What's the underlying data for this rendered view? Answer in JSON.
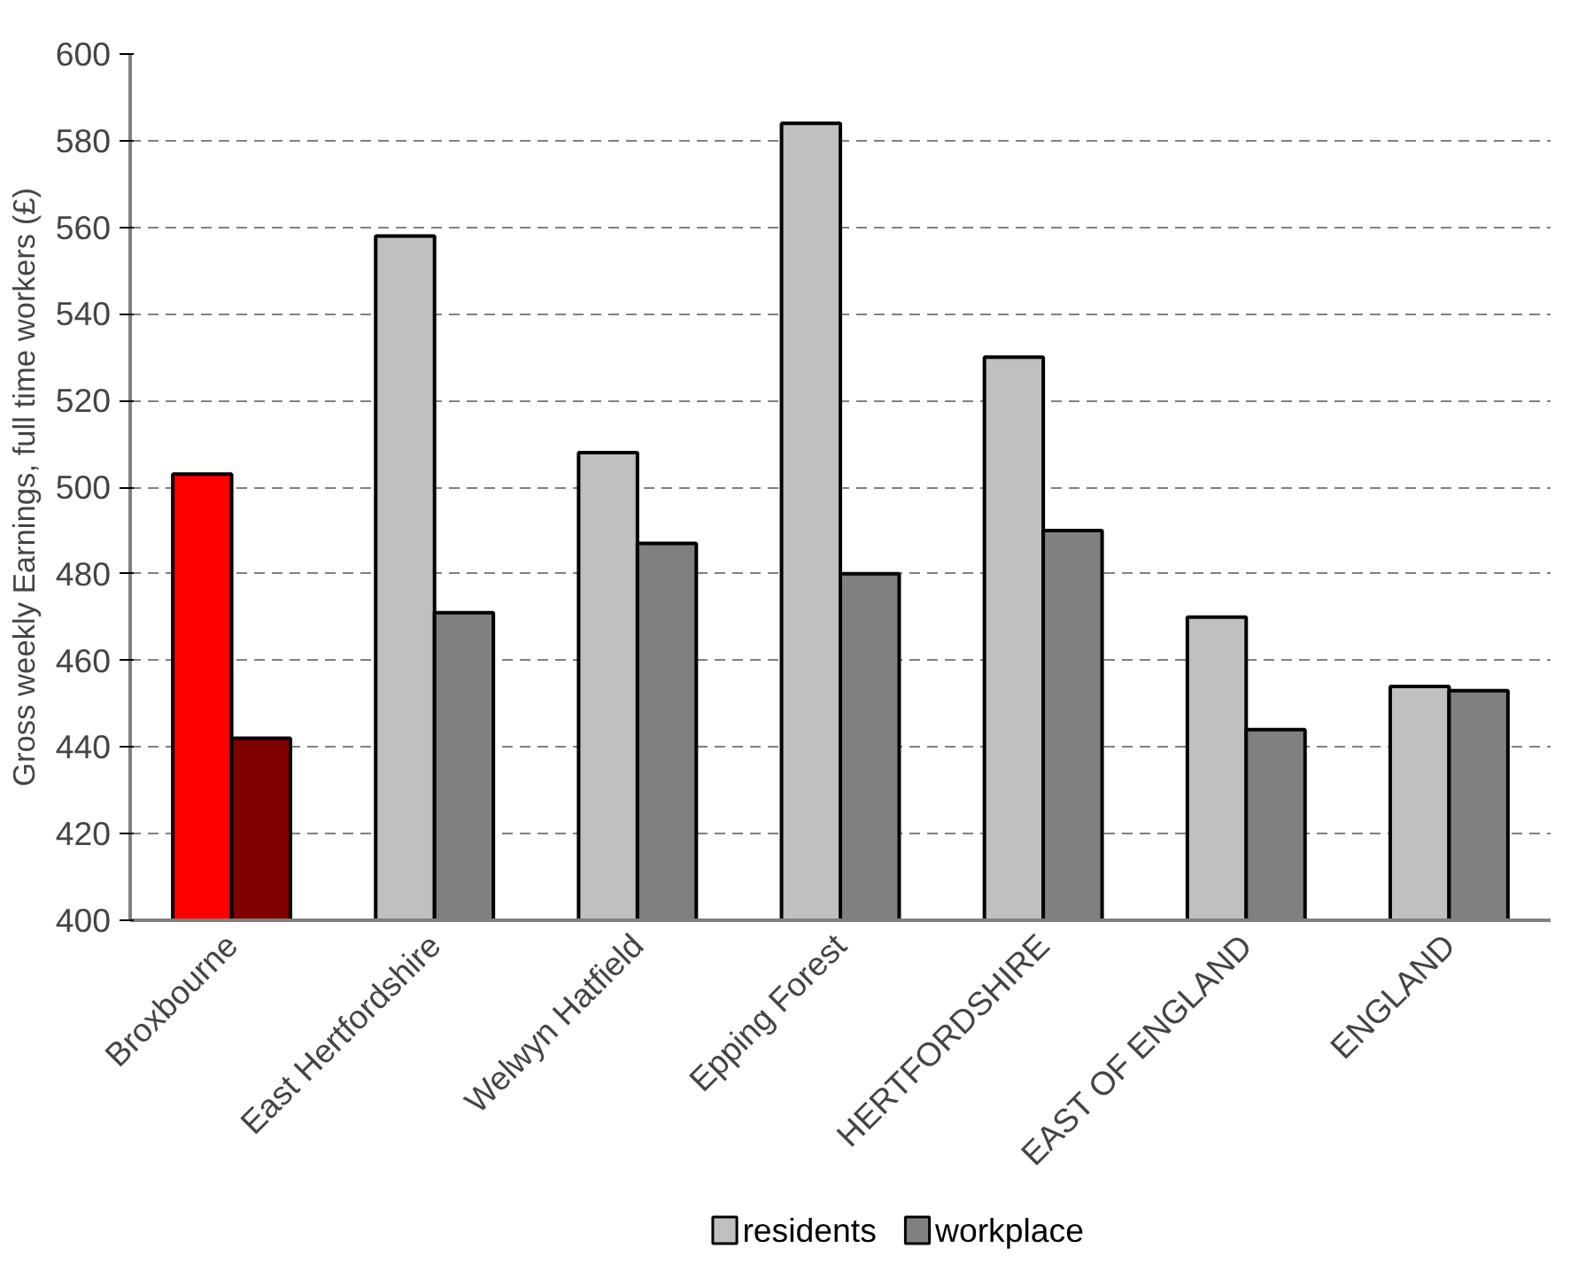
{
  "chart_data": {
    "type": "bar",
    "ylabel": "Gross weekly Earnings, full time workers (£)",
    "categories": [
      "Broxbourne",
      "East Hertfordshire",
      "Welwyn Hatfield",
      "Epping Forest",
      "HERTFORDSHIRE",
      "EAST OF ENGLAND",
      "ENGLAND"
    ],
    "series": [
      {
        "name": "residents",
        "color": "#c0c0c0",
        "colors": [
          "#ff0000",
          "#c0c0c0",
          "#c0c0c0",
          "#c0c0c0",
          "#c0c0c0",
          "#c0c0c0",
          "#c0c0c0"
        ],
        "values": [
          503,
          558,
          508,
          584,
          530,
          470,
          454
        ]
      },
      {
        "name": "workplace",
        "color": "#808080",
        "colors": [
          "#800000",
          "#808080",
          "#808080",
          "#808080",
          "#808080",
          "#808080",
          "#808080"
        ],
        "values": [
          442,
          471,
          487,
          480,
          490,
          444,
          453
        ]
      }
    ],
    "ylim": [
      400,
      600
    ],
    "yticks": [
      400,
      420,
      440,
      460,
      480,
      500,
      520,
      540,
      560,
      580,
      600
    ],
    "grid": "y",
    "legend": "bottom"
  }
}
